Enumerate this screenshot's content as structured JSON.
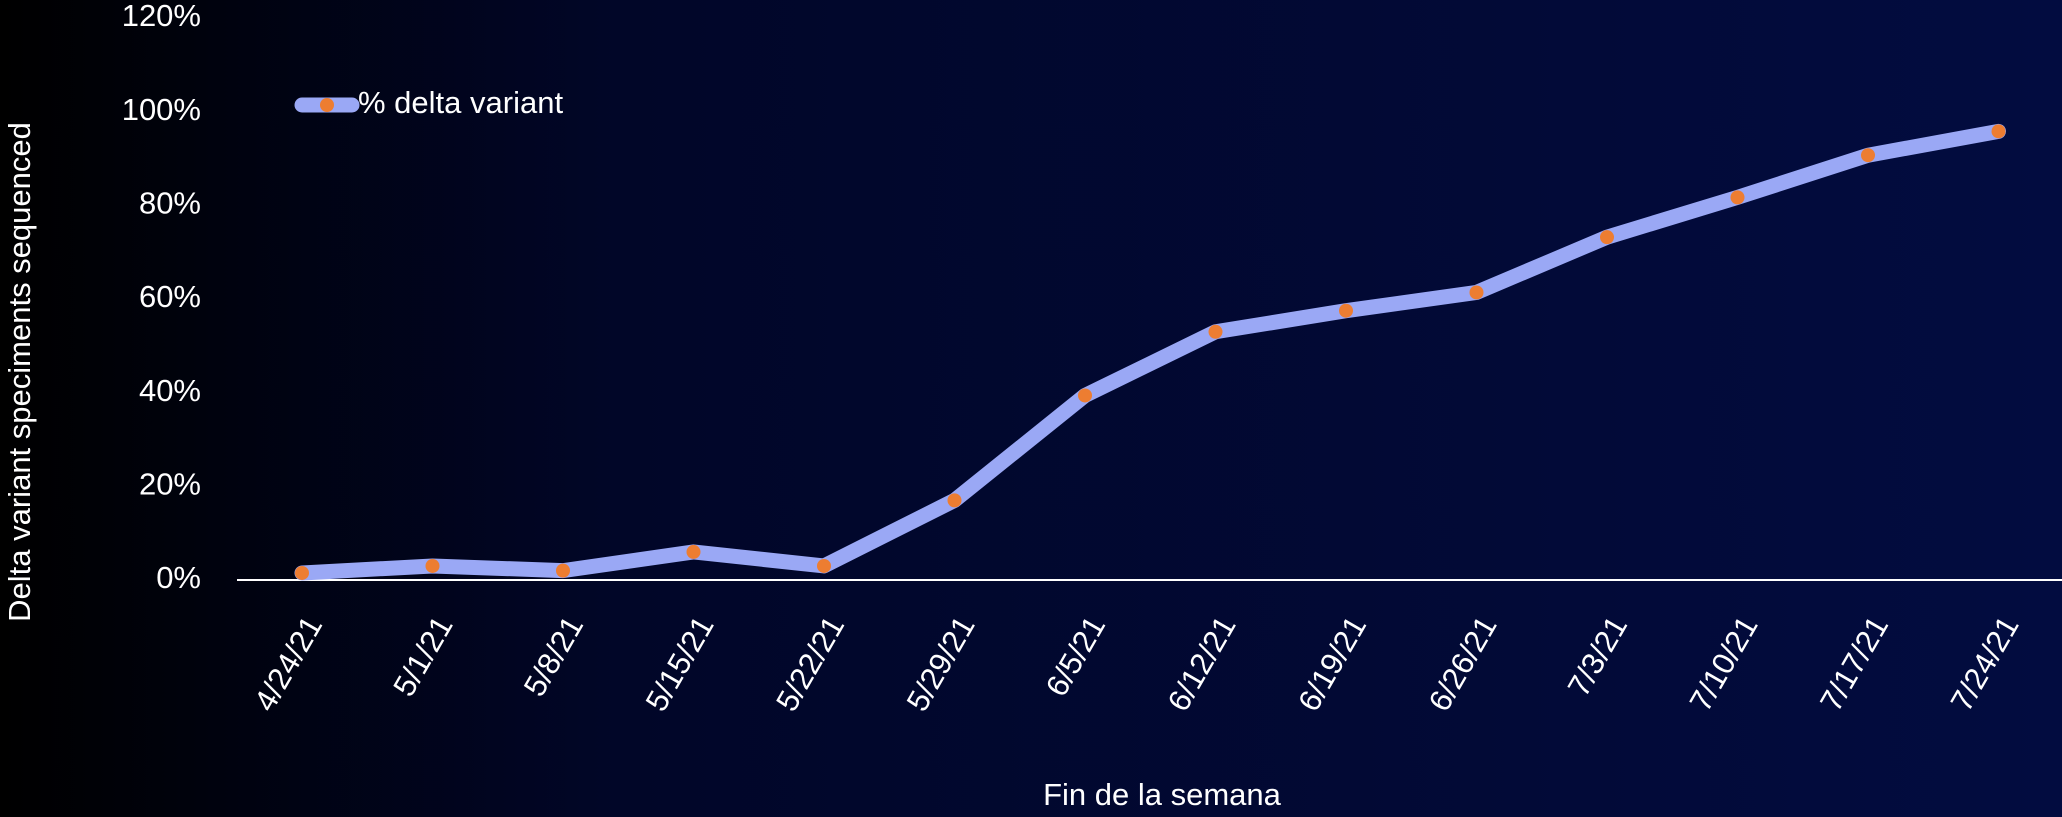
{
  "chart_data": {
    "type": "line",
    "x_label": "Fin de la semana",
    "y_label": "Delta variant speciments sequenced",
    "categories": [
      "4/24/21",
      "5/1/21",
      "5/8/21",
      "5/15/21",
      "5/22/21",
      "5/29/21",
      "6/5/21",
      "6/12/21",
      "6/19/21",
      "6/26/21",
      "7/3/21",
      "7/10/21",
      "7/17/21",
      "7/24/21"
    ],
    "series": [
      {
        "name": "% delta variant",
        "color": "#9aa8f5",
        "marker_color": "#ed7d31",
        "values": [
          1.5,
          3,
          2,
          6,
          3,
          17,
          39.4,
          53,
          57.5,
          61.4,
          73.2,
          81.7,
          90.7,
          95.8
        ]
      }
    ],
    "ylim": [
      0,
      120
    ],
    "yticks": [
      {
        "value": 0,
        "label": "0%"
      },
      {
        "value": 20,
        "label": "20%"
      },
      {
        "value": 40,
        "label": "40%"
      },
      {
        "value": 60,
        "label": "60%"
      },
      {
        "value": 80,
        "label": "80%"
      },
      {
        "value": 100,
        "label": "100%"
      },
      {
        "value": 120,
        "label": "120%"
      }
    ],
    "legend": "top-left"
  }
}
